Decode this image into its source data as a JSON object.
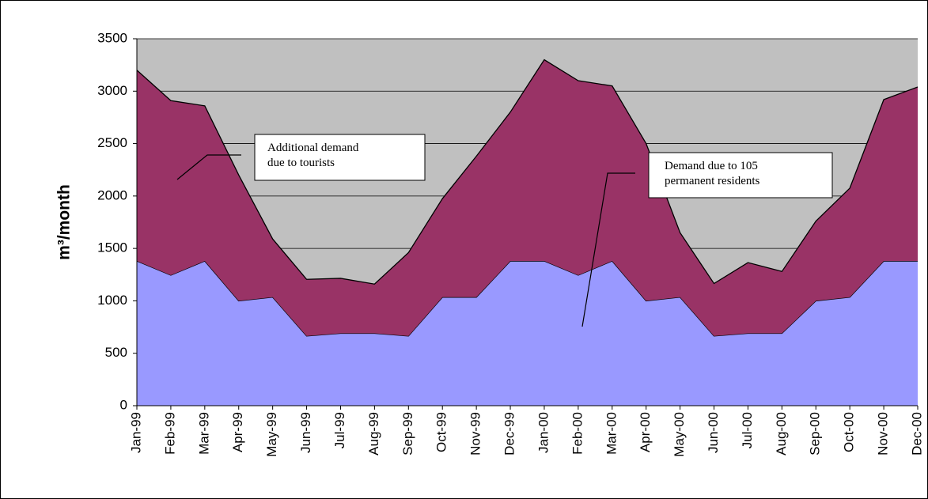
{
  "chart_data": {
    "type": "stacked_area",
    "y_label": "m³/month",
    "categories": [
      "Jan-99",
      "Feb-99",
      "Mar-99",
      "Apr-99",
      "May-99",
      "Jun-99",
      "Jul-99",
      "Aug-99",
      "Sep-99",
      "Oct-99",
      "Nov-99",
      "Dec-99",
      "Jan-00",
      "Feb-00",
      "Mar-00",
      "Apr-00",
      "May-00",
      "Jun-00",
      "Jul-00",
      "Aug-00",
      "Sep-00",
      "Oct-00",
      "Nov-00",
      "Dec-00"
    ],
    "series": [
      {
        "name": "Demand due to 105 permanent residents",
        "color": "#9999ff",
        "values": [
          1380,
          1245,
          1380,
          1000,
          1035,
          665,
          690,
          690,
          665,
          1035,
          1035,
          1380,
          1380,
          1245,
          1380,
          1000,
          1035,
          665,
          690,
          690,
          1000,
          1035,
          1380,
          1380
        ]
      },
      {
        "name": "Additional demand due to tourists",
        "color": "#993366",
        "values": [
          1820,
          1665,
          1480,
          1200,
          555,
          540,
          525,
          470,
          795,
          940,
          1345,
          1420,
          1920,
          1855,
          1670,
          1500,
          615,
          500,
          675,
          590,
          760,
          1040,
          1540,
          1660
        ]
      }
    ],
    "annotations": [
      {
        "lines": [
          "Additional demand",
          "due to tourists"
        ]
      },
      {
        "lines": [
          "Demand due to 105",
          "permanent residents"
        ]
      }
    ],
    "ylim": [
      0,
      3500
    ],
    "yticks": [
      0,
      500,
      1000,
      1500,
      2000,
      2500,
      3000,
      3500
    ],
    "grid": true,
    "background": "#c0c0c0"
  }
}
